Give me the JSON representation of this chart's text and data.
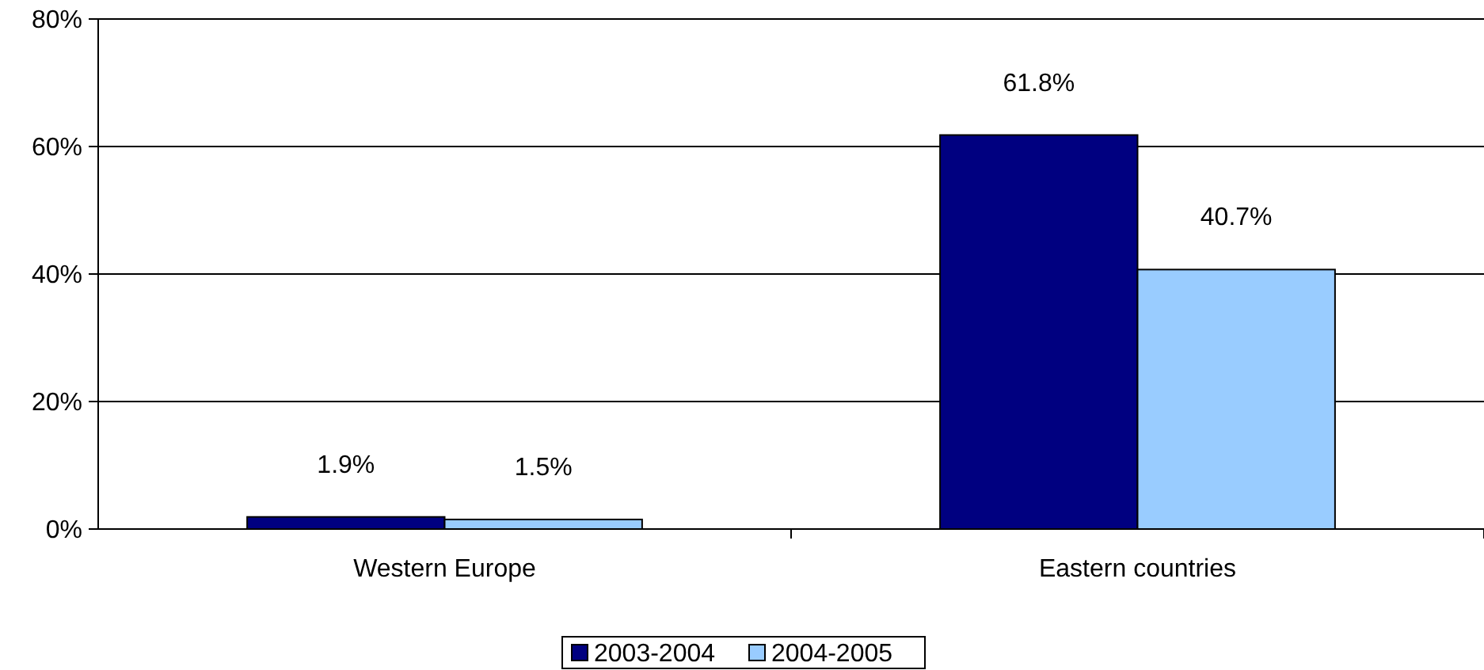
{
  "chart_data": {
    "type": "bar",
    "categories": [
      "Western Europe",
      "Eastern countries"
    ],
    "series": [
      {
        "name": "2003-2004",
        "color": "#000080",
        "values": [
          1.9,
          61.8
        ],
        "value_labels": [
          "1.9%",
          "61.8%"
        ]
      },
      {
        "name": "2004-2005",
        "color": "#99ccff",
        "values": [
          1.5,
          40.7
        ],
        "value_labels": [
          "1.5%",
          "40.7%"
        ]
      }
    ],
    "ylim": [
      0,
      80
    ],
    "yticks": [
      {
        "value": 0,
        "label": "0%"
      },
      {
        "value": 20,
        "label": "20%"
      },
      {
        "value": 40,
        "label": "40%"
      },
      {
        "value": 60,
        "label": "60%"
      },
      {
        "value": 80,
        "label": "80%"
      }
    ],
    "grid": "y",
    "legend": "bottom"
  }
}
